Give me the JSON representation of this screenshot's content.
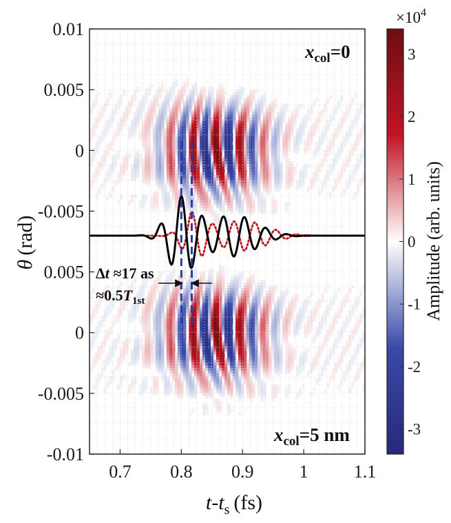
{
  "chart_data": {
    "type": "heatmap",
    "xlabel_main": "t",
    "xlabel_dash": "-",
    "xlabel_var": "t",
    "xlabel_sub": "s",
    "xlabel_unit": "(fs)",
    "ylabel_main": "θ",
    "ylabel_unit": "(rad)",
    "xlim": [
      0.65,
      1.1
    ],
    "x_ticks": [
      0.7,
      0.8,
      0.9,
      1,
      1.1
    ],
    "x_tick_labels": [
      "0.7",
      "0.8",
      "0.9",
      "1",
      "1.1"
    ],
    "y_tick_labels": [
      "0.01",
      "0.005",
      "0",
      "-0.005",
      "0.005",
      "0",
      "-0.005",
      "-0.01"
    ],
    "panels": [
      {
        "label_var": "x",
        "label_sub": "col",
        "label_value": "=0",
        "theta_range": [
          -0.0075,
          0.01
        ]
      },
      {
        "label_var": "x",
        "label_sub": "col",
        "label_value": "=5 nm",
        "theta_range": [
          -0.01,
          0.0075
        ]
      }
    ],
    "colorbar": {
      "label": "Amplitude (arb. units)",
      "exponent_base": "×10",
      "exponent_power": "4",
      "range": [
        -3.4,
        3.4
      ],
      "ticks": [
        "3",
        "2",
        "1",
        "0",
        "-1",
        "-2",
        "-3"
      ],
      "tick_values": [
        3,
        2,
        1,
        0,
        -1,
        -2,
        -3
      ],
      "colors": [
        "#28287a",
        "#3a4aa8",
        "#ffffff",
        "#c11524",
        "#6b0f12"
      ]
    },
    "waveforms": [
      {
        "name": "solid",
        "color": "#000000",
        "style": "solid"
      },
      {
        "name": "dotted",
        "color": "#c0141f",
        "style": "dotted"
      }
    ],
    "marker_lines": {
      "x": [
        0.8,
        0.817
      ],
      "color": "#2a3aa0"
    },
    "annotation": {
      "delta": "Δ",
      "t_italic": "t",
      "approx_value": " ≈17 as",
      "approx_prefix": "≈0.5",
      "T_italic": "T",
      "T_sub": "1st"
    }
  }
}
